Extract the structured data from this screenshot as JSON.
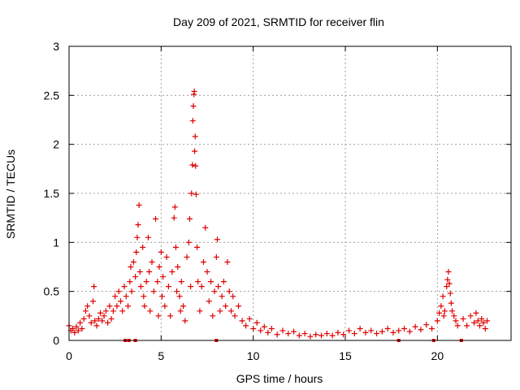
{
  "chart_data": {
    "type": "scatter",
    "title": "Day 209 of 2021, SRMTID for receiver flin",
    "xlabel": "GPS time / hours",
    "ylabel": "SRMTID / TECUs",
    "xlim": [
      0,
      24
    ],
    "ylim": [
      0,
      3
    ],
    "x_ticks": [
      0,
      5,
      10,
      15,
      20
    ],
    "x_tick_labels": [
      "0",
      "5",
      "10",
      "15",
      "20"
    ],
    "y_ticks": [
      0,
      0.5,
      1,
      1.5,
      2,
      2.5,
      3
    ],
    "y_tick_labels": [
      "0",
      "0.5",
      "1",
      "1.5",
      "2",
      "2.5",
      "3"
    ],
    "grid": true,
    "marker": "plus",
    "color": "#e00000",
    "series": [
      {
        "name": "SRMTID",
        "points": [
          [
            0.0,
            0.15
          ],
          [
            0.1,
            0.1
          ],
          [
            0.2,
            0.12
          ],
          [
            0.3,
            0.08
          ],
          [
            0.4,
            0.14
          ],
          [
            0.5,
            0.1
          ],
          [
            0.6,
            0.18
          ],
          [
            0.7,
            0.12
          ],
          [
            0.8,
            0.22
          ],
          [
            0.9,
            0.3
          ],
          [
            1.0,
            0.35
          ],
          [
            1.1,
            0.25
          ],
          [
            1.2,
            0.18
          ],
          [
            1.3,
            0.4
          ],
          [
            1.35,
            0.55
          ],
          [
            1.4,
            0.2
          ],
          [
            1.5,
            0.15
          ],
          [
            1.6,
            0.22
          ],
          [
            1.7,
            0.28
          ],
          [
            1.8,
            0.2
          ],
          [
            1.9,
            0.25
          ],
          [
            2.0,
            0.3
          ],
          [
            2.1,
            0.18
          ],
          [
            2.2,
            0.35
          ],
          [
            2.3,
            0.22
          ],
          [
            2.4,
            0.3
          ],
          [
            2.5,
            0.45
          ],
          [
            2.6,
            0.35
          ],
          [
            2.7,
            0.5
          ],
          [
            2.8,
            0.4
          ],
          [
            2.9,
            0.3
          ],
          [
            3.0,
            0.55
          ],
          [
            3.1,
            0.45
          ],
          [
            3.2,
            0.35
          ],
          [
            3.3,
            0.6
          ],
          [
            3.35,
            0.75
          ],
          [
            3.4,
            0.5
          ],
          [
            3.5,
            0.8
          ],
          [
            3.6,
            0.65
          ],
          [
            3.65,
            0.9
          ],
          [
            3.7,
            1.05
          ],
          [
            3.75,
            1.18
          ],
          [
            3.8,
            1.38
          ],
          [
            3.85,
            0.7
          ],
          [
            3.9,
            0.55
          ],
          [
            4.0,
            0.95
          ],
          [
            4.05,
            0.45
          ],
          [
            4.1,
            0.35
          ],
          [
            4.2,
            0.6
          ],
          [
            4.3,
            1.05
          ],
          [
            4.35,
            0.7
          ],
          [
            4.4,
            0.3
          ],
          [
            4.5,
            0.8
          ],
          [
            4.6,
            0.5
          ],
          [
            4.7,
            1.24
          ],
          [
            4.8,
            0.6
          ],
          [
            4.85,
            0.25
          ],
          [
            4.9,
            0.75
          ],
          [
            5.0,
            0.9
          ],
          [
            5.05,
            0.45
          ],
          [
            5.1,
            0.65
          ],
          [
            5.2,
            0.35
          ],
          [
            5.3,
            0.85
          ],
          [
            5.4,
            0.55
          ],
          [
            5.5,
            0.25
          ],
          [
            5.6,
            0.7
          ],
          [
            5.7,
            1.25
          ],
          [
            5.75,
            1.36
          ],
          [
            5.8,
            0.95
          ],
          [
            5.85,
            0.5
          ],
          [
            5.9,
            0.75
          ],
          [
            6.0,
            0.45
          ],
          [
            6.05,
            0.3
          ],
          [
            6.1,
            0.6
          ],
          [
            6.2,
            0.35
          ],
          [
            6.3,
            0.2
          ],
          [
            6.4,
            0.85
          ],
          [
            6.5,
            1.0
          ],
          [
            6.55,
            1.24
          ],
          [
            6.6,
            0.55
          ],
          [
            6.65,
            1.5
          ],
          [
            6.7,
            1.79
          ],
          [
            6.72,
            2.24
          ],
          [
            6.75,
            2.39
          ],
          [
            6.78,
            2.51
          ],
          [
            6.8,
            2.54
          ],
          [
            6.82,
            1.93
          ],
          [
            6.85,
            2.08
          ],
          [
            6.87,
            1.78
          ],
          [
            6.9,
            1.49
          ],
          [
            6.95,
            0.95
          ],
          [
            7.0,
            0.6
          ],
          [
            7.1,
            0.3
          ],
          [
            7.2,
            0.55
          ],
          [
            7.3,
            0.8
          ],
          [
            7.4,
            1.15
          ],
          [
            7.5,
            0.7
          ],
          [
            7.6,
            0.4
          ],
          [
            7.7,
            0.6
          ],
          [
            7.8,
            0.25
          ],
          [
            7.9,
            0.5
          ],
          [
            8.0,
            0.85
          ],
          [
            8.05,
            1.03
          ],
          [
            8.1,
            0.55
          ],
          [
            8.2,
            0.3
          ],
          [
            8.3,
            0.45
          ],
          [
            8.4,
            0.6
          ],
          [
            8.5,
            0.35
          ],
          [
            8.6,
            0.8
          ],
          [
            8.7,
            0.5
          ],
          [
            8.8,
            0.3
          ],
          [
            8.9,
            0.45
          ],
          [
            9.0,
            0.25
          ],
          [
            9.2,
            0.35
          ],
          [
            9.4,
            0.2
          ],
          [
            9.6,
            0.15
          ],
          [
            9.8,
            0.22
          ],
          [
            10.0,
            0.12
          ],
          [
            10.2,
            0.18
          ],
          [
            10.4,
            0.1
          ],
          [
            10.6,
            0.14
          ],
          [
            10.8,
            0.08
          ],
          [
            11.0,
            0.12
          ],
          [
            11.3,
            0.06
          ],
          [
            11.6,
            0.1
          ],
          [
            11.9,
            0.07
          ],
          [
            12.2,
            0.09
          ],
          [
            12.5,
            0.05
          ],
          [
            12.8,
            0.07
          ],
          [
            13.1,
            0.04
          ],
          [
            13.4,
            0.06
          ],
          [
            13.7,
            0.05
          ],
          [
            14.0,
            0.07
          ],
          [
            14.3,
            0.05
          ],
          [
            14.6,
            0.08
          ],
          [
            14.9,
            0.06
          ],
          [
            15.2,
            0.1
          ],
          [
            15.5,
            0.07
          ],
          [
            15.8,
            0.12
          ],
          [
            16.1,
            0.08
          ],
          [
            16.4,
            0.1
          ],
          [
            16.7,
            0.07
          ],
          [
            17.0,
            0.09
          ],
          [
            17.3,
            0.12
          ],
          [
            17.6,
            0.08
          ],
          [
            17.9,
            0.1
          ],
          [
            18.2,
            0.12
          ],
          [
            18.5,
            0.09
          ],
          [
            18.8,
            0.14
          ],
          [
            19.1,
            0.11
          ],
          [
            19.4,
            0.16
          ],
          [
            19.7,
            0.12
          ],
          [
            20.0,
            0.2
          ],
          [
            20.1,
            0.28
          ],
          [
            20.2,
            0.35
          ],
          [
            20.3,
            0.45
          ],
          [
            20.35,
            0.25
          ],
          [
            20.4,
            0.3
          ],
          [
            20.5,
            0.55
          ],
          [
            20.55,
            0.62
          ],
          [
            20.6,
            0.7
          ],
          [
            20.65,
            0.58
          ],
          [
            20.7,
            0.48
          ],
          [
            20.75,
            0.38
          ],
          [
            20.8,
            0.3
          ],
          [
            20.9,
            0.25
          ],
          [
            21.0,
            0.2
          ],
          [
            21.1,
            0.15
          ],
          [
            21.4,
            0.22
          ],
          [
            21.6,
            0.15
          ],
          [
            21.8,
            0.25
          ],
          [
            22.0,
            0.18
          ],
          [
            22.1,
            0.28
          ],
          [
            22.2,
            0.2
          ],
          [
            22.3,
            0.15
          ],
          [
            22.4,
            0.22
          ],
          [
            22.5,
            0.18
          ],
          [
            22.6,
            0.12
          ],
          [
            22.7,
            0.2
          ]
        ]
      }
    ],
    "zero_points": [
      3.05,
      3.25,
      3.6,
      8.0,
      17.9,
      19.8,
      21.3
    ]
  }
}
